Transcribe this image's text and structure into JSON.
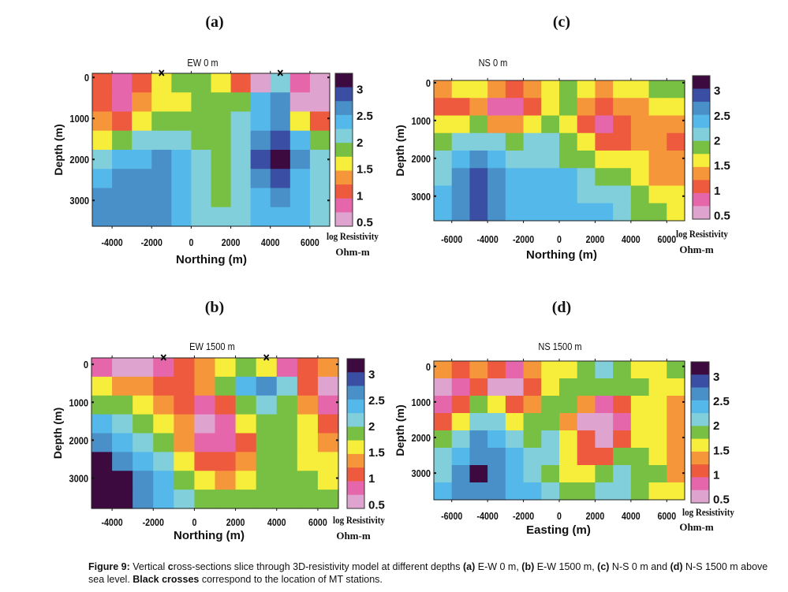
{
  "chart_data": {
    "colorscale": {
      "label_line1": "log Resistivity",
      "label_line2": "Ohm-m",
      "tick_labels": [
        "3",
        "2.5",
        "2",
        "1.5",
        "1",
        "0.5"
      ],
      "tick_values": [
        3,
        2.5,
        2,
        1.5,
        1,
        0.5
      ],
      "classes": [
        {
          "value": 3.2,
          "color": "#3d0a3f"
        },
        {
          "value": 3.0,
          "color": "#3a4fa3"
        },
        {
          "value": 2.7,
          "color": "#4a90c8"
        },
        {
          "value": 2.4,
          "color": "#55b8ea"
        },
        {
          "value": 2.2,
          "color": "#80cfdb"
        },
        {
          "value": 2.0,
          "color": "#78c043"
        },
        {
          "value": 1.5,
          "color": "#f6ee3b"
        },
        {
          "value": 1.25,
          "color": "#f5963a"
        },
        {
          "value": 1.0,
          "color": "#ee5a3e"
        },
        {
          "value": 0.75,
          "color": "#e566ab"
        },
        {
          "value": 0.5,
          "color": "#dea3cf"
        }
      ]
    },
    "panels": [
      {
        "id": "a",
        "letter": "(a)",
        "type": "heatmap",
        "title": "EW 0 m",
        "xlabel": "Northing (m)",
        "ylabel": "Depth (m)",
        "xlim": [
          -5000,
          7000
        ],
        "ylim": [
          -100,
          3630
        ],
        "xticks": [
          -4000,
          -2000,
          0,
          2000,
          4000,
          6000
        ],
        "xtick_labels": [
          "-4000",
          "-2000",
          "0",
          "2000",
          "4000",
          "6000"
        ],
        "yticks": [
          0,
          1000,
          2000,
          3000
        ],
        "ytick_labels": [
          "0",
          "1000",
          "2000",
          "3000"
        ],
        "stations_x": [
          -1500,
          4500
        ],
        "z": [
          [
            1.0,
            0.75,
            1.0,
            1.5,
            2.0,
            2.0,
            1.5,
            1.0,
            0.5,
            2.2,
            0.75,
            0.5
          ],
          [
            1.0,
            0.75,
            1.25,
            1.5,
            1.5,
            2.0,
            2.0,
            2.0,
            2.4,
            2.7,
            0.5,
            0.5
          ],
          [
            1.25,
            1.0,
            1.5,
            2.0,
            2.0,
            2.0,
            2.0,
            2.2,
            2.4,
            2.7,
            1.5,
            1.0
          ],
          [
            1.5,
            2.0,
            2.2,
            2.2,
            2.2,
            2.0,
            2.0,
            2.2,
            2.7,
            3.0,
            2.4,
            2.0
          ],
          [
            2.2,
            2.4,
            2.4,
            2.7,
            2.4,
            2.2,
            2.0,
            2.2,
            3.0,
            3.2,
            2.7,
            2.2
          ],
          [
            2.4,
            2.7,
            2.7,
            2.7,
            2.4,
            2.2,
            2.0,
            2.2,
            2.7,
            3.0,
            2.4,
            2.2
          ],
          [
            2.7,
            2.7,
            2.7,
            2.7,
            2.4,
            2.2,
            2.0,
            2.2,
            2.4,
            2.7,
            2.4,
            2.2
          ],
          [
            2.7,
            2.7,
            2.7,
            2.7,
            2.4,
            2.2,
            2.2,
            2.2,
            2.4,
            2.4,
            2.4,
            2.2
          ]
        ]
      },
      {
        "id": "b",
        "letter": "(b)",
        "type": "heatmap",
        "title": "EW 1500 m",
        "xlabel": "Northing (m)",
        "ylabel": "Depth (m)",
        "xlim": [
          -5000,
          7000
        ],
        "ylim": [
          -170,
          3800
        ],
        "xticks": [
          -4000,
          -2000,
          0,
          2000,
          4000,
          6000
        ],
        "xtick_labels": [
          "-4000",
          "-2000",
          "0",
          "2000",
          "4000",
          "6000"
        ],
        "yticks": [
          0,
          1000,
          2000,
          3000
        ],
        "ytick_labels": [
          "0",
          "1000",
          "2000",
          "3000"
        ],
        "stations_x": [
          -1500,
          3500
        ],
        "z": [
          [
            0.75,
            0.5,
            0.5,
            0.75,
            1.0,
            1.25,
            1.5,
            2.0,
            1.5,
            0.75,
            1.0,
            1.25
          ],
          [
            1.5,
            1.25,
            1.25,
            1.0,
            1.0,
            1.25,
            2.0,
            2.4,
            2.7,
            2.2,
            1.0,
            0.5
          ],
          [
            2.0,
            2.0,
            1.5,
            1.25,
            1.0,
            0.75,
            1.0,
            2.0,
            2.2,
            2.0,
            1.25,
            0.75
          ],
          [
            2.4,
            2.2,
            2.0,
            1.5,
            1.25,
            0.5,
            0.75,
            1.5,
            2.0,
            2.0,
            1.5,
            1.0
          ],
          [
            2.7,
            2.4,
            2.2,
            2.0,
            1.25,
            0.75,
            0.75,
            1.0,
            2.0,
            2.0,
            1.5,
            1.25
          ],
          [
            3.2,
            2.7,
            2.4,
            2.2,
            1.5,
            1.0,
            1.0,
            1.25,
            2.0,
            2.0,
            1.5,
            1.5
          ],
          [
            3.2,
            3.2,
            2.7,
            2.4,
            2.0,
            1.5,
            1.25,
            1.5,
            2.0,
            2.0,
            2.0,
            1.5
          ],
          [
            3.2,
            3.2,
            2.7,
            2.4,
            2.2,
            2.0,
            2.0,
            2.0,
            2.0,
            2.0,
            2.0,
            2.0
          ]
        ]
      },
      {
        "id": "c",
        "letter": "(c)",
        "type": "heatmap",
        "title": "NS 0 m",
        "xlabel": "Northing (m)",
        "ylabel": "Depth (m)",
        "xlim": [
          -7000,
          7000
        ],
        "ylim": [
          -60,
          3650
        ],
        "xticks": [
          -6000,
          -4000,
          -2000,
          0,
          2000,
          4000,
          6000
        ],
        "xtick_labels": [
          "-6000",
          "-4000",
          "-2000",
          "0",
          "2000",
          "4000",
          "6000"
        ],
        "yticks": [
          0,
          1000,
          2000,
          3000
        ],
        "ytick_labels": [
          "0",
          "1000",
          "2000",
          "3000"
        ],
        "stations_x": [],
        "z": [
          [
            1.25,
            1.5,
            1.5,
            1.25,
            1.0,
            1.25,
            1.5,
            2.0,
            1.5,
            1.25,
            1.5,
            1.5,
            2.0,
            2.0
          ],
          [
            1.0,
            1.0,
            1.25,
            0.75,
            0.75,
            1.0,
            1.5,
            2.0,
            1.25,
            1.0,
            1.25,
            1.25,
            1.5,
            1.5
          ],
          [
            1.5,
            1.5,
            2.0,
            1.25,
            1.25,
            1.5,
            2.0,
            1.5,
            1.0,
            0.75,
            1.0,
            1.25,
            1.25,
            1.25
          ],
          [
            2.0,
            2.2,
            2.2,
            2.2,
            2.0,
            2.2,
            2.2,
            2.0,
            1.5,
            1.0,
            1.0,
            1.25,
            1.25,
            1.0
          ],
          [
            2.2,
            2.4,
            2.7,
            2.4,
            2.2,
            2.2,
            2.2,
            2.0,
            2.0,
            1.5,
            1.5,
            1.5,
            1.25,
            1.25
          ],
          [
            2.2,
            2.7,
            3.0,
            2.7,
            2.4,
            2.4,
            2.4,
            2.4,
            2.2,
            2.0,
            2.0,
            1.5,
            1.25,
            1.25
          ],
          [
            2.4,
            2.7,
            3.0,
            2.7,
            2.4,
            2.4,
            2.4,
            2.4,
            2.2,
            2.2,
            2.2,
            2.0,
            1.5,
            1.5
          ],
          [
            2.4,
            2.7,
            3.0,
            2.7,
            2.4,
            2.4,
            2.4,
            2.4,
            2.4,
            2.4,
            2.2,
            2.0,
            2.0,
            1.5
          ]
        ]
      },
      {
        "id": "d",
        "letter": "(d)",
        "type": "heatmap",
        "title": "NS 1500 m",
        "xlabel": "Easting (m)",
        "ylabel": "Depth (m)",
        "xlim": [
          -7000,
          7000
        ],
        "ylim": [
          -150,
          3750
        ],
        "xticks": [
          -6000,
          -4000,
          -2000,
          0,
          2000,
          4000,
          6000
        ],
        "xtick_labels": [
          "-6000",
          "-4000",
          "-2000",
          "0",
          "2000",
          "4000",
          "6000"
        ],
        "yticks": [
          0,
          1000,
          2000,
          3000
        ],
        "ytick_labels": [
          "0",
          "1000",
          "2000",
          "3000"
        ],
        "stations_x": [],
        "z": [
          [
            1.25,
            1.0,
            1.25,
            1.0,
            0.75,
            1.25,
            1.5,
            1.5,
            2.0,
            2.2,
            2.0,
            1.5,
            1.5,
            2.0
          ],
          [
            0.5,
            0.75,
            1.0,
            0.5,
            0.5,
            1.0,
            1.5,
            2.0,
            2.0,
            2.0,
            2.0,
            2.0,
            1.5,
            1.5
          ],
          [
            0.75,
            1.0,
            2.0,
            1.5,
            1.0,
            1.25,
            2.0,
            2.0,
            1.25,
            0.75,
            1.0,
            1.5,
            1.5,
            1.25
          ],
          [
            1.0,
            1.5,
            2.2,
            2.2,
            1.5,
            2.0,
            2.0,
            1.25,
            0.5,
            0.5,
            0.75,
            1.5,
            1.5,
            1.25
          ],
          [
            2.0,
            2.2,
            2.7,
            2.4,
            2.2,
            2.0,
            2.2,
            1.5,
            1.0,
            0.5,
            1.0,
            1.5,
            1.5,
            1.25
          ],
          [
            2.2,
            2.4,
            2.7,
            2.7,
            2.4,
            2.2,
            2.2,
            1.5,
            1.0,
            1.0,
            2.0,
            2.0,
            1.5,
            1.25
          ],
          [
            2.2,
            2.7,
            3.2,
            2.7,
            2.4,
            2.2,
            2.0,
            1.5,
            1.5,
            2.0,
            2.2,
            2.0,
            2.0,
            1.25
          ],
          [
            2.4,
            2.7,
            2.7,
            2.7,
            2.4,
            2.4,
            2.2,
            2.0,
            2.0,
            2.2,
            2.2,
            2.0,
            1.5,
            1.5
          ]
        ]
      }
    ]
  },
  "caption": {
    "fig_label": "Figure 9:",
    "t1": " Vertical ",
    "t1b": "c",
    "t2": "ross-sections slice through 3D-resistivity model at different depths ",
    "a": "(a)",
    "t3": " E-W 0 m, ",
    "b": "(b)",
    "t4": " E-W 1500 m, ",
    "c": "(c)",
    "t5": " N-S 0 m and ",
    "d": "(d)",
    "t6": " N-S 1500 m above sea level. ",
    "bold2": "Black crosses",
    "t7": " correspond to the location of MT stations."
  }
}
